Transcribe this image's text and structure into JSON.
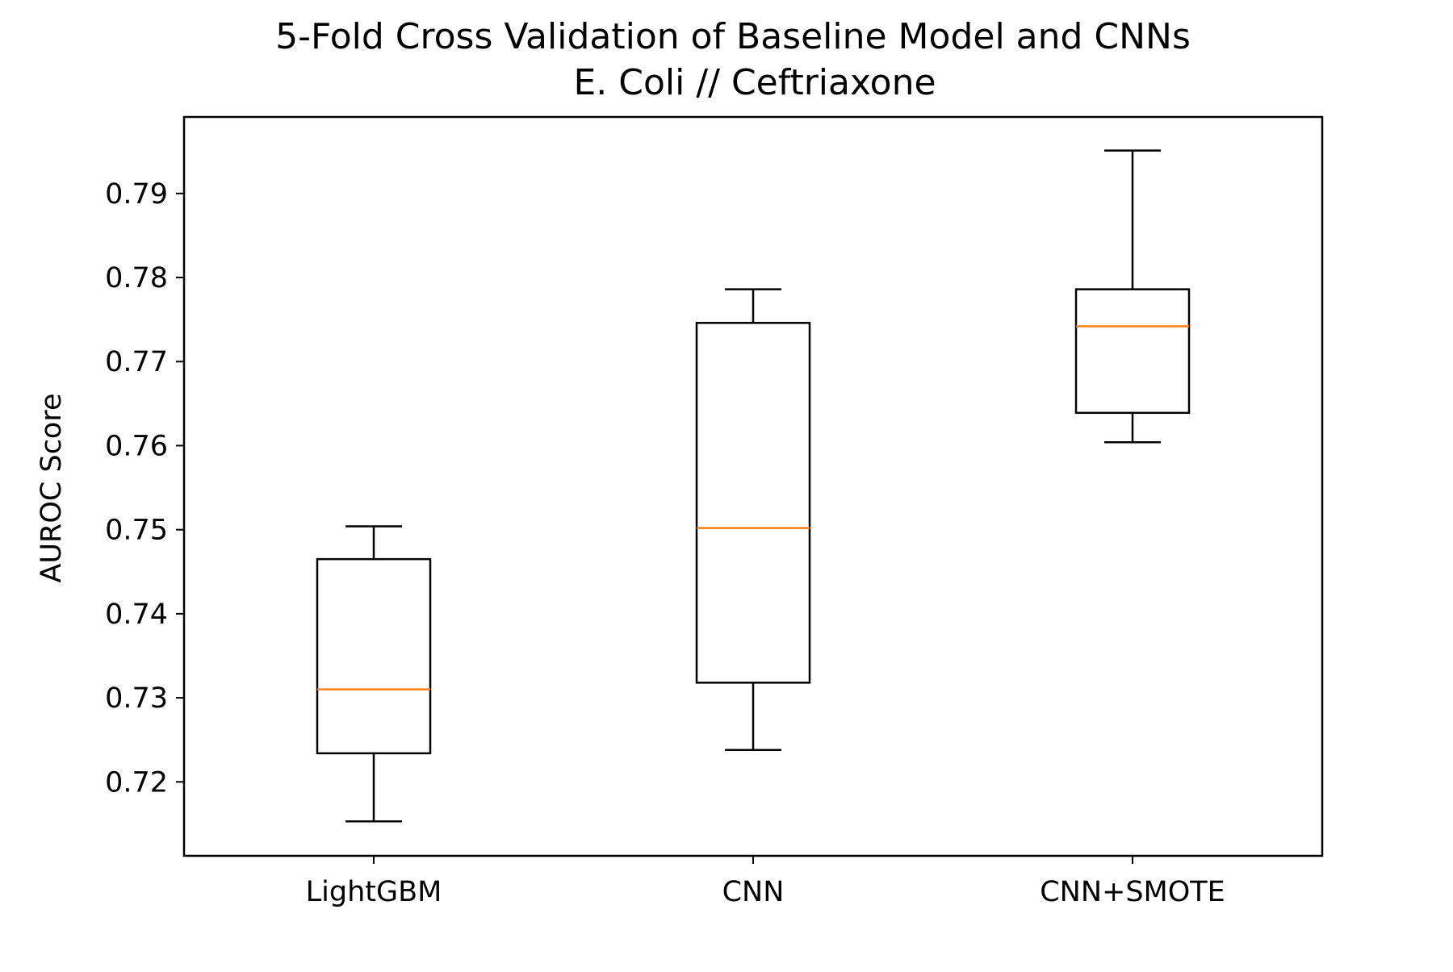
{
  "chart_data": {
    "type": "box",
    "title": "5-Fold Cross Validation of Baseline Model and CNNs",
    "subtitle": "E. Coli // Ceftriaxone",
    "xlabel": "",
    "ylabel": "AUROC Score",
    "ylim": [
      0.7112,
      0.7991
    ],
    "yticks": [
      "0.72",
      "0.73",
      "0.74",
      "0.75",
      "0.76",
      "0.77",
      "0.78",
      "0.79"
    ],
    "grid": false,
    "categories": [
      "LightGBM",
      "CNN",
      "CNN+SMOTE"
    ],
    "boxes": [
      {
        "category": "LightGBM",
        "whisker_low": 0.7153,
        "q1": 0.7234,
        "median": 0.731,
        "q3": 0.7465,
        "whisker_high": 0.7504
      },
      {
        "category": "CNN",
        "whisker_low": 0.7238,
        "q1": 0.7318,
        "median": 0.7502,
        "q3": 0.7746,
        "whisker_high": 0.7786
      },
      {
        "category": "CNN+SMOTE",
        "whisker_low": 0.7604,
        "q1": 0.7639,
        "median": 0.7742,
        "q3": 0.7786,
        "whisker_high": 0.7951
      }
    ],
    "colors": {
      "box": "#000000",
      "median": "#ff7f0e"
    }
  }
}
